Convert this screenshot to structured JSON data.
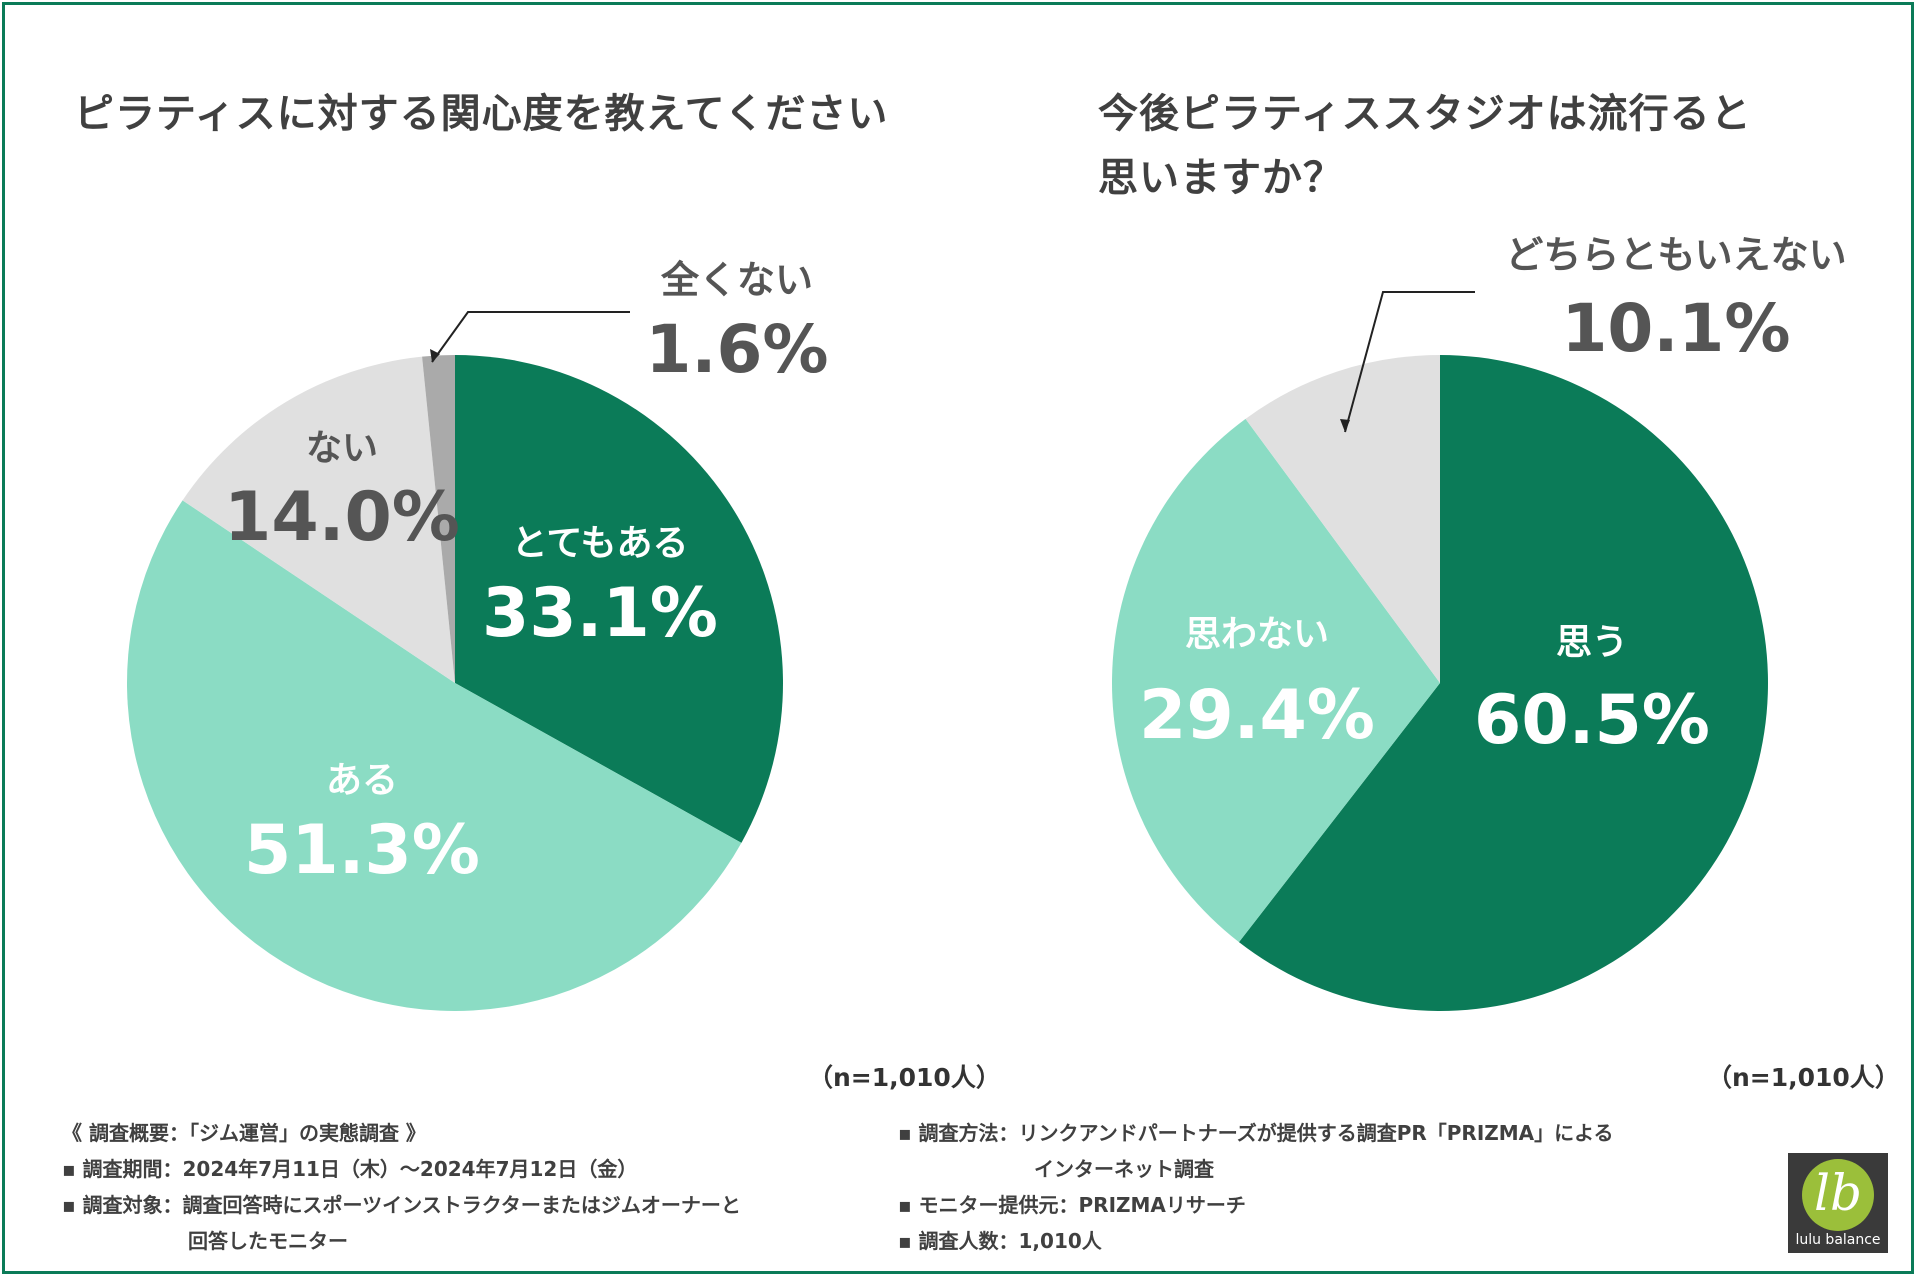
{
  "colors": {
    "frame": "#0b7b58",
    "dark_green": "#0b7b58",
    "mint": "#8bdcc4",
    "light_gray": "#e0e0e0",
    "mid_gray": "#aaaaaa",
    "text_gray": "#555555"
  },
  "chart_data": [
    {
      "type": "pie",
      "title": "ピラティスに対する関心度を教えてください",
      "sample": "（n=1,010人）",
      "slices": [
        {
          "label": "とてもある",
          "value": 33.1,
          "display": "33.1%",
          "color": "#0b7b58",
          "text_color": "#ffffff"
        },
        {
          "label": "ある",
          "value": 51.3,
          "display": "51.3%",
          "color": "#8bdcc4",
          "text_color": "#ffffff"
        },
        {
          "label": "ない",
          "value": 14.0,
          "display": "14.0%",
          "color": "#e0e0e0",
          "text_color": "#555555"
        },
        {
          "label": "全くない",
          "value": 1.6,
          "display": "1.6%",
          "color": "#aaaaaa",
          "text_color": "#555555"
        }
      ]
    },
    {
      "type": "pie",
      "title": "今後ピラティススタジオは流行ると思いますか？",
      "sample": "（n=1,010人）",
      "slices": [
        {
          "label": "思う",
          "value": 60.5,
          "display": "60.5%",
          "color": "#0b7b58",
          "text_color": "#ffffff"
        },
        {
          "label": "思わない",
          "value": 29.4,
          "display": "29.4%",
          "color": "#8bdcc4",
          "text_color": "#ffffff"
        },
        {
          "label": "どちらともいえない",
          "value": 10.1,
          "display": "10.1%",
          "color": "#e0e0e0",
          "text_color": "#555555"
        }
      ]
    }
  ],
  "titles": {
    "left": "ピラティスに対する関心度を教えてください",
    "right_line1": "今後ピラティススタジオは流行ると",
    "right_line2": "思いますか？"
  },
  "notes": {
    "header": "《 調査概要：「ジム運営」の実態調査 》",
    "period": "▪ 調査期間：2024年7月11日（木）〜2024年7月12日（金）",
    "target_line1": "▪ 調査対象：調査回答時にスポーツインストラクターまたはジムオーナーと",
    "target_line2": "回答したモニター",
    "method_line1": "▪ 調査方法：リンクアンドパートナーズが提供する調査PR「PRIZMA」による",
    "method_line2": "インターネット調査",
    "provider": "▪ モニター提供元：PRIZMAリサーチ",
    "count": "▪ 調査人数：1,010人"
  },
  "logo": {
    "mark": "lb",
    "text": "lulu balance"
  }
}
